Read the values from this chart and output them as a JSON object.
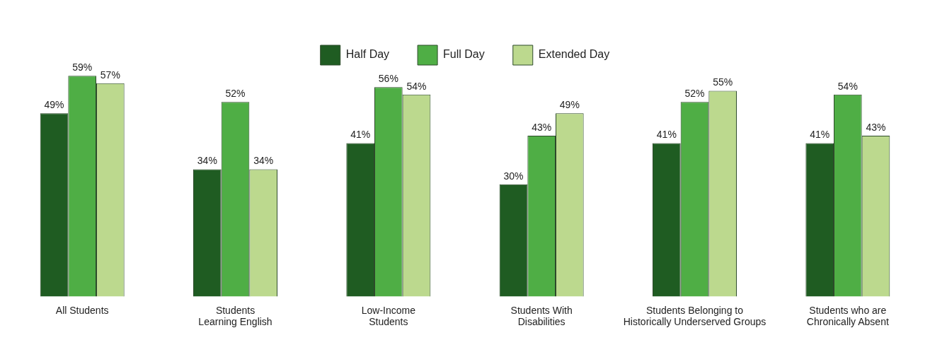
{
  "chart_data": {
    "type": "bar",
    "categories": [
      "All Students",
      "Students\nLearning English",
      "Low-Income\nStudents",
      "Students With\nDisabilities",
      "Students Belonging to\nHistorically Underserved Groups",
      "Students who are\nChronically Absent"
    ],
    "series": [
      {
        "name": "Half Day",
        "color": "#1f5c22",
        "values": [
          49,
          34,
          41,
          30,
          41,
          41
        ],
        "value_labels": [
          "49%",
          "34%",
          "41%",
          "30%",
          "41%",
          "41%"
        ]
      },
      {
        "name": "Full Day",
        "color": "#4fae45",
        "values": [
          59,
          52,
          56,
          43,
          52,
          54
        ],
        "value_labels": [
          "59%",
          "52%",
          "56%",
          "43%",
          "52%",
          "54%"
        ]
      },
      {
        "name": "Extended Day",
        "color": "#bcd98e",
        "values": [
          57,
          34,
          54,
          49,
          55,
          43
        ],
        "value_labels": [
          "57%",
          "34%",
          "54%",
          "49%",
          "55%",
          "43%"
        ]
      }
    ],
    "legend": "top",
    "tick_labels": "x"
  }
}
